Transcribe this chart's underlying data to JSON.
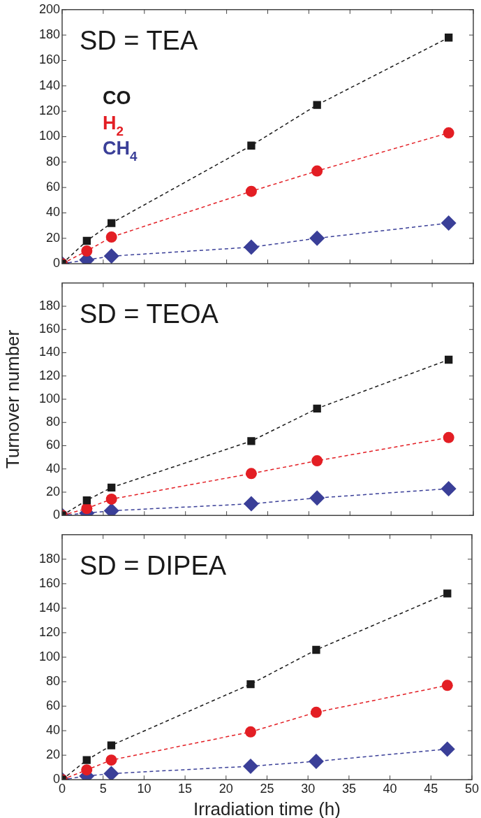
{
  "chart_data": [
    {
      "type": "line",
      "title": "SD = TEA",
      "legend": "top left",
      "tick_labels": "y",
      "grid": false,
      "line_style": "dashed",
      "xlim": [
        0,
        50
      ],
      "xticks": [
        0,
        5,
        10,
        15,
        20,
        25,
        30,
        35,
        40,
        45,
        50
      ],
      "ylim": [
        0,
        200
      ],
      "yticks": [
        0,
        20,
        40,
        60,
        80,
        100,
        120,
        140,
        160,
        180,
        200
      ],
      "x": [
        0,
        3,
        6,
        23,
        31,
        47
      ],
      "series": [
        {
          "name": "CO",
          "color": "#1a1a1a",
          "marker": "square",
          "values": [
            0,
            18,
            32,
            93,
            125,
            178
          ]
        },
        {
          "name": "H$_{2}$",
          "color": "#e31e24",
          "marker": "circle",
          "values": [
            0,
            10,
            21,
            57,
            73,
            103
          ]
        },
        {
          "name": "CH$_{4}$",
          "color": "#3a3f98",
          "marker": "diamond",
          "values": [
            0,
            3,
            6,
            13,
            20,
            32
          ]
        }
      ]
    },
    {
      "type": "line",
      "title": "SD = TEOA",
      "ylabel": "Turnover number",
      "tick_labels": "y",
      "grid": false,
      "line_style": "dashed",
      "xlim": [
        0,
        50
      ],
      "xticks": [
        0,
        5,
        10,
        15,
        20,
        25,
        30,
        35,
        40,
        45,
        50
      ],
      "ylim": [
        0,
        200
      ],
      "yticks": [
        0,
        20,
        40,
        60,
        80,
        100,
        120,
        140,
        160,
        180
      ],
      "x": [
        0,
        3,
        6,
        23,
        31,
        47
      ],
      "series": [
        {
          "color": "#1a1a1a",
          "marker": "square",
          "values": [
            0,
            13,
            24,
            64,
            92,
            134
          ]
        },
        {
          "color": "#e31e24",
          "marker": "circle",
          "values": [
            0,
            6,
            14,
            36,
            47,
            67
          ]
        },
        {
          "color": "#3a3f98",
          "marker": "diamond",
          "values": [
            0,
            2,
            4,
            10,
            15,
            23
          ]
        }
      ]
    },
    {
      "type": "line",
      "title": "SD = DIPEA",
      "xlabel": "Irradiation time (h)",
      "grid": false,
      "line_style": "dashed",
      "xlim": [
        0,
        50
      ],
      "xticks": [
        0,
        5,
        10,
        15,
        20,
        25,
        30,
        35,
        40,
        45,
        50
      ],
      "ylim": [
        0,
        200
      ],
      "yticks": [
        0,
        20,
        40,
        60,
        80,
        100,
        120,
        140,
        160,
        180
      ],
      "x": [
        0,
        3,
        6,
        23,
        31,
        47
      ],
      "series": [
        {
          "color": "#1a1a1a",
          "marker": "square",
          "values": [
            0,
            16,
            28,
            78,
            106,
            152
          ]
        },
        {
          "color": "#e31e24",
          "marker": "circle",
          "values": [
            0,
            8,
            16,
            39,
            55,
            77
          ]
        },
        {
          "color": "#3a3f98",
          "marker": "diamond",
          "values": [
            0,
            3,
            5,
            11,
            15,
            25
          ]
        }
      ]
    }
  ]
}
